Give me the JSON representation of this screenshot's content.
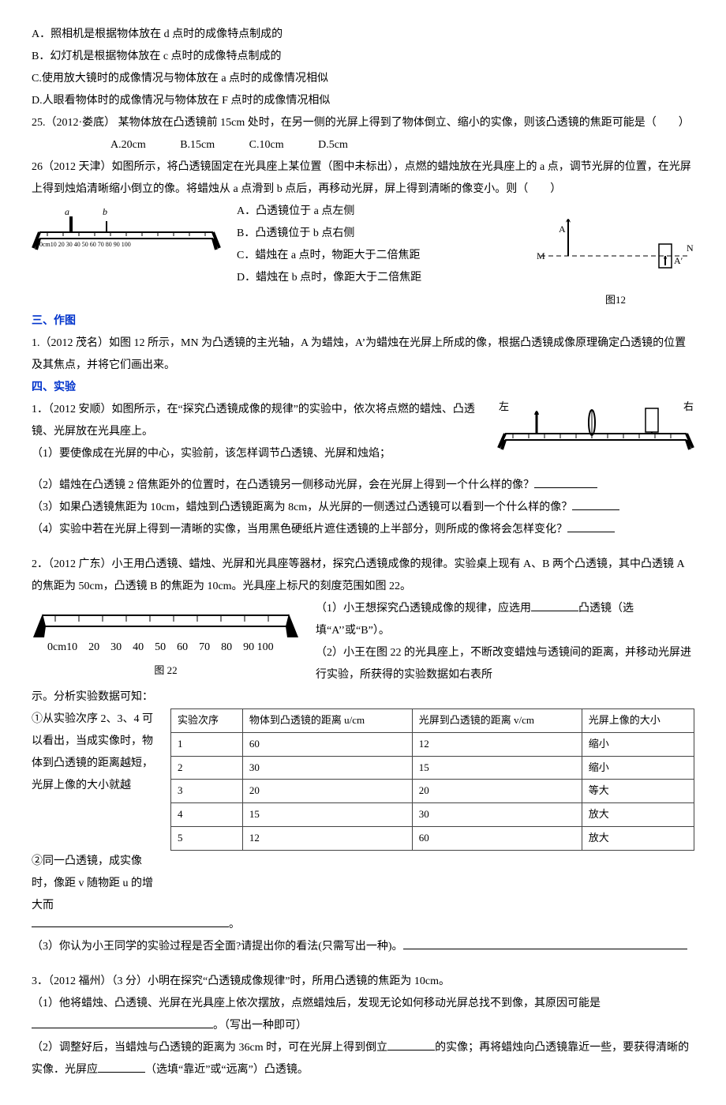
{
  "q24": {
    "optA": "A．照相机是根据物体放在 d 点时的成像特点制成的",
    "optB": "B．幻灯机是根据物体放在 c 点时的成像特点制成的",
    "optC": "C.使用放大镜时的成像情况与物体放在 a 点时的成像情况相似",
    "optD": "D.人眼看物体时的成像情况与物体放在 F 点时的成像情况相似"
  },
  "q25": {
    "stem": "25.（2012·娄底） 某物体放在凸透镜前 15cm 处时，在另一侧的光屏上得到了物体倒立、缩小的实像，则该凸透镜的焦距可能是（　　）",
    "optA": "A.20cm",
    "optB": "B.15cm",
    "optC": "C.10cm",
    "optD": "D.5cm"
  },
  "q26": {
    "stem": "26（2012 天津）如图所示，将凸透镜固定在光具座上某位置（图中未标出），点燃的蜡烛放在光具座上的 a 点，调节光屏的位置，在光屏上得到烛焰清晰缩小倒立的像。将蜡烛从 a 点滑到 b 点后，再移动光屏，屏上得到清晰的像变小。则（　　）",
    "optA": "A．凸透镜位于 a 点左侧",
    "optB": "B．凸透镜位于 b 点右侧",
    "optC": "C．蜡烛在 a 点时，物距大于二倍焦距",
    "optD": "D．蜡烛在 b 点时，像距大于二倍焦距",
    "ruler": "0cm10　20　30　40　50　60　70　80　90　100"
  },
  "sec3": {
    "title": "三、作图",
    "q1": "1.（2012 茂名）如图 12 所示，MN 为凸透镜的主光轴，A 为蜡烛，A’为蜡烛在光屏上所成的像，根据凸透镜成像原理确定凸透镜的位置及其焦点，并将它们画出来。",
    "fig12_M": "M",
    "fig12_N": "N",
    "fig12_A": "A",
    "fig12_A2": "A′",
    "fig12_label": "图12"
  },
  "sec4": {
    "title": "四、实验",
    "q1": {
      "stem": "1．（2012 安顺）如图所示，在“探究凸透镜成像的规律”的实验中，依次将点燃的蜡烛、凸透镜、光屏放在光具座上。",
      "p1": "（1）要使像成在光屏的中心，实验前，该怎样调节凸透镜、光屏和烛焰；",
      "p2": "（2）蜡烛在凸透镜 2 倍焦距外的位置时，在凸透镜另一侧移动光屏，会在光屏上得到一个什么样的像？",
      "p3": "（3）如果凸透镜焦距为 10cm，蜡烛到凸透镜距离为 8cm，从光屏的一侧透过凸透镜可以看到一个什么样的像？",
      "p4": "（4）实验中若在光屏上得到一清晰的实像，当用黑色硬纸片遮住透镜的上半部分，则所成的像将会怎样变化？",
      "zuo": "左",
      "you": "右"
    },
    "q2": {
      "stem": "2．（2012 广东）小王用凸透镜、蜡烛、光屏和光具座等器材，探究凸透镜成像的规律。实验桌上现有 A、B 两个凸透镜，其中凸透镜 A 的焦距为 50cm，凸透镜 B 的焦距为 10cm。光具座上标尺的刻度范围如图 22。",
      "p1a": "（1）小王想探究凸透镜成像的规律，应选用",
      "p1b": "凸透镜（选填“A’’或“B”）。",
      "p2": "（2）小王在图 22 的光具座上，不断改变蜡烛与透镜间的距离，并移动光屏进行实验，所获得的实验数据如右表所",
      "p2b": "示。分析实验数据可知：",
      "p2c": "①从实验次序 2、3、4 可以看出，当成实像时，物体到凸透镜的距离越短，光屏上像的大小就越",
      "p2d": "②同一凸透镜，成实像时，像距 v 随物距 u 的增大而",
      "p2e": "。",
      "p3": "（3）你认为小王同学的实验过程是否全面?请提出你的看法(只需写出一种)。",
      "ruler": "0cm10　20　30　40　50　60　70　80　90 100",
      "fig22_label": "图 22",
      "table": {
        "headers": [
          "实验次序",
          "物体到凸透镜的距离 u/cm",
          "光屏到凸透镜的距离 v/cm",
          "光屏上像的大小"
        ],
        "rows": [
          [
            "1",
            "60",
            "12",
            "缩小"
          ],
          [
            "2",
            "30",
            "15",
            "缩小"
          ],
          [
            "3",
            "20",
            "20",
            "等大"
          ],
          [
            "4",
            "15",
            "30",
            "放大"
          ],
          [
            "5",
            "12",
            "60",
            "放大"
          ]
        ]
      }
    },
    "q3": {
      "stem": "3．（2012 福州）（3 分）小明在探究“凸透镜成像规律”时，所用凸透镜的焦距为 10cm。",
      "p1a": "（1）他将蜡烛、凸透镜、光屏在光具座上依次摆放，点燃蜡烛后，发现无论如何移动光屏总找不到像，其原因可能是",
      "p1b": "。（写出一种即可）",
      "p2a": "（2）调整好后，当蜡烛与凸透镜的距离为 36cm 时，可在光屏上得到倒立",
      "p2b": "的实像；再将蜡烛向凸透镜靠近一些，要获得清晰的实像．光屏应",
      "p2c": "（选填“靠近”或“远离”）凸透镜。"
    }
  }
}
